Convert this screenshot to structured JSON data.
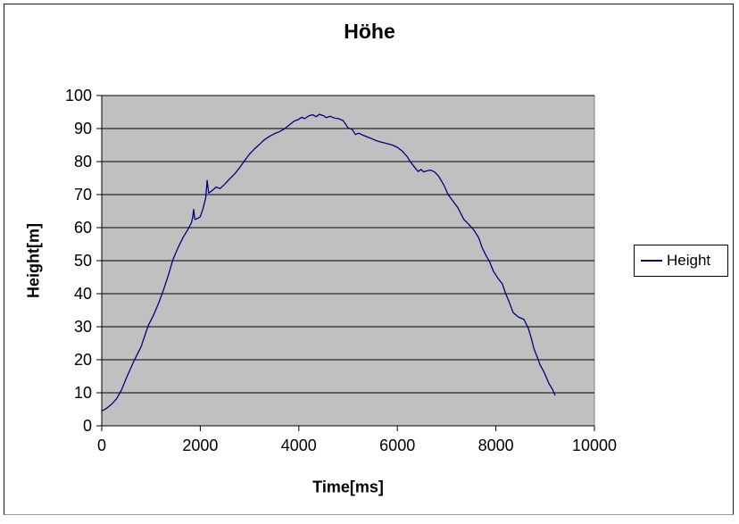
{
  "chart_data": {
    "type": "line",
    "title": "Höhe",
    "xlabel": "Time[ms]",
    "ylabel": "Height[m]",
    "xlim": [
      0,
      10000
    ],
    "ylim": [
      0,
      100
    ],
    "x_ticks": [
      0,
      2000,
      4000,
      6000,
      8000,
      10000
    ],
    "y_ticks": [
      0,
      10,
      20,
      30,
      40,
      50,
      60,
      70,
      80,
      90,
      100
    ],
    "grid": "horizontal",
    "plot_bg_color": "#c0c0c0",
    "gridline_color": "#000000",
    "plot_border_color": "#808080",
    "legend": {
      "position": "right",
      "entries": [
        {
          "label": "Height",
          "color": "#000080"
        }
      ]
    },
    "series": [
      {
        "name": "Height",
        "color": "#000080",
        "points": [
          [
            0,
            4.5
          ],
          [
            100,
            5.3
          ],
          [
            200,
            6.5
          ],
          [
            300,
            8.2
          ],
          [
            400,
            10.8
          ],
          [
            500,
            14.5
          ],
          [
            600,
            17.8
          ],
          [
            650,
            19.5
          ],
          [
            700,
            21
          ],
          [
            800,
            24
          ],
          [
            900,
            28.5
          ],
          [
            950,
            30.5
          ],
          [
            1050,
            33.5
          ],
          [
            1150,
            37
          ],
          [
            1250,
            41
          ],
          [
            1350,
            45.5
          ],
          [
            1450,
            50.5
          ],
          [
            1550,
            54
          ],
          [
            1650,
            57
          ],
          [
            1750,
            59.5
          ],
          [
            1820,
            61.5
          ],
          [
            1845,
            63
          ],
          [
            1866,
            65.5
          ],
          [
            1890,
            62.5
          ],
          [
            1950,
            62.8
          ],
          [
            2000,
            63.3
          ],
          [
            2060,
            66
          ],
          [
            2110,
            69
          ],
          [
            2140,
            74.3
          ],
          [
            2170,
            70.5
          ],
          [
            2250,
            71.3
          ],
          [
            2320,
            72.3
          ],
          [
            2400,
            71.8
          ],
          [
            2500,
            73.2
          ],
          [
            2600,
            74.8
          ],
          [
            2700,
            76.3
          ],
          [
            2800,
            78.2
          ],
          [
            2900,
            80.3
          ],
          [
            3000,
            82.3
          ],
          [
            3100,
            83.8
          ],
          [
            3200,
            85.2
          ],
          [
            3300,
            86.6
          ],
          [
            3400,
            87.6
          ],
          [
            3500,
            88.4
          ],
          [
            3600,
            89
          ],
          [
            3700,
            89.8
          ],
          [
            3800,
            91
          ],
          [
            3900,
            92.2
          ],
          [
            4000,
            92.8
          ],
          [
            4060,
            93.4
          ],
          [
            4120,
            93
          ],
          [
            4200,
            93.8
          ],
          [
            4280,
            94.2
          ],
          [
            4350,
            93.6
          ],
          [
            4420,
            94.3
          ],
          [
            4500,
            93.9
          ],
          [
            4560,
            93.3
          ],
          [
            4640,
            93.7
          ],
          [
            4720,
            93.2
          ],
          [
            4800,
            93
          ],
          [
            4900,
            92.4
          ],
          [
            5000,
            90.2
          ],
          [
            5080,
            89.8
          ],
          [
            5150,
            88.2
          ],
          [
            5220,
            88.6
          ],
          [
            5300,
            88
          ],
          [
            5400,
            87.4
          ],
          [
            5500,
            86.8
          ],
          [
            5600,
            86.2
          ],
          [
            5750,
            85.6
          ],
          [
            5900,
            85
          ],
          [
            6000,
            84.3
          ],
          [
            6100,
            83.2
          ],
          [
            6200,
            81.5
          ],
          [
            6270,
            79.8
          ],
          [
            6350,
            78.3
          ],
          [
            6420,
            77
          ],
          [
            6480,
            77.6
          ],
          [
            6530,
            76.9
          ],
          [
            6600,
            77.2
          ],
          [
            6680,
            77.4
          ],
          [
            6760,
            76.8
          ],
          [
            6840,
            75.5
          ],
          [
            6940,
            73
          ],
          [
            7030,
            70
          ],
          [
            7130,
            68
          ],
          [
            7230,
            66
          ],
          [
            7350,
            62.5
          ],
          [
            7450,
            61
          ],
          [
            7550,
            59.3
          ],
          [
            7650,
            57
          ],
          [
            7720,
            54
          ],
          [
            7800,
            51.5
          ],
          [
            7870,
            49.8
          ],
          [
            7950,
            46.8
          ],
          [
            8050,
            44.5
          ],
          [
            8130,
            43
          ],
          [
            8200,
            40
          ],
          [
            8270,
            37.5
          ],
          [
            8350,
            34.3
          ],
          [
            8450,
            33
          ],
          [
            8570,
            32.2
          ],
          [
            8660,
            29.5
          ],
          [
            8720,
            26.5
          ],
          [
            8770,
            23.5
          ],
          [
            8860,
            20
          ],
          [
            8890,
            18.7
          ],
          [
            8990,
            15.9
          ],
          [
            9080,
            12.7
          ],
          [
            9150,
            11
          ],
          [
            9200,
            9.3
          ]
        ]
      }
    ]
  }
}
